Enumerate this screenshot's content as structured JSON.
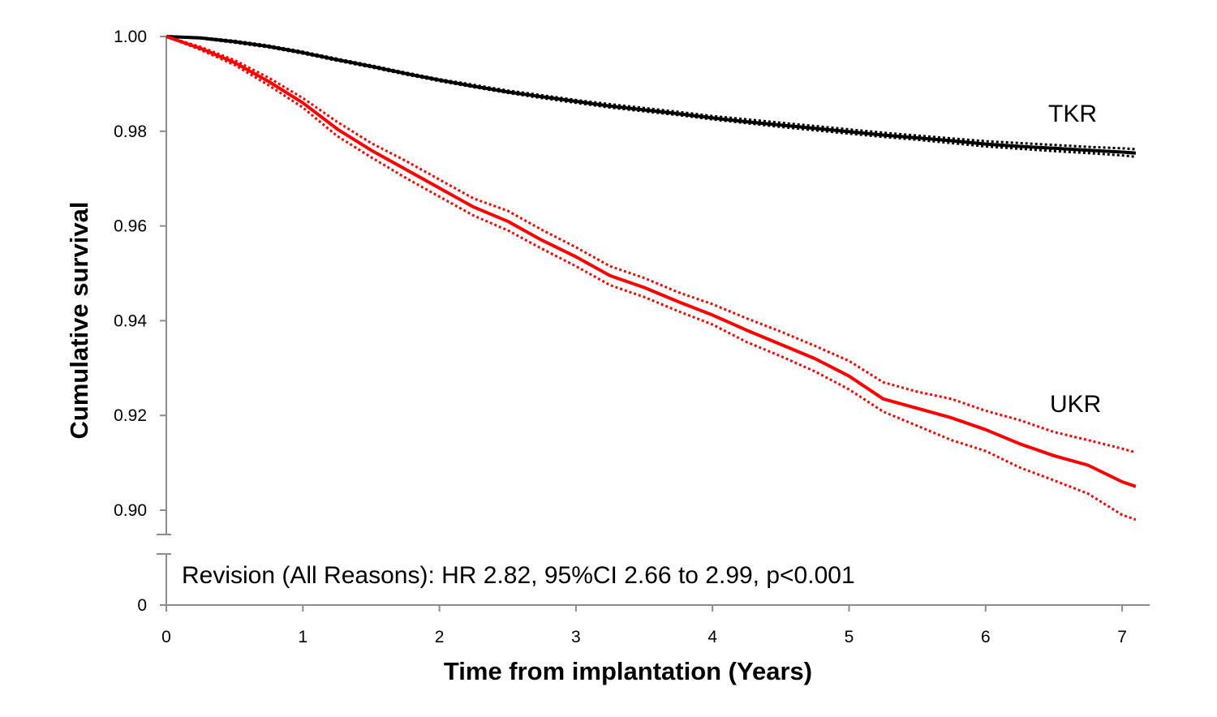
{
  "chart_data": {
    "type": "line",
    "title": "",
    "xlabel": "Time from implantation (Years)",
    "ylabel": "Cumulative survival",
    "x_ticks": [
      0,
      1,
      2,
      3,
      4,
      5,
      6,
      7
    ],
    "x_tick_labels": [
      "0",
      "1",
      "2",
      "3",
      "4",
      "5",
      "6",
      "7"
    ],
    "y_ticks": [
      0.9,
      0.92,
      0.94,
      0.96,
      0.98,
      1.0
    ],
    "y_tick_labels": [
      "0.90",
      "0.92",
      "0.94",
      "0.96",
      "0.98",
      "1.00"
    ],
    "y_break_tick_label": "0",
    "xlim": [
      0,
      7.2
    ],
    "ylim": [
      0.895,
      1.0
    ],
    "y_axis_break": true,
    "grid": false,
    "annotation": "Revision (All Reasons): HR 2.82, 95%CI 2.66 to 2.99, p<0.001",
    "series": [
      {
        "name": "TKR",
        "color": "#000000",
        "x": [
          0,
          0.25,
          0.5,
          0.75,
          1,
          1.25,
          1.5,
          1.75,
          2,
          2.25,
          2.5,
          2.75,
          3,
          3.25,
          3.5,
          3.75,
          4,
          4.25,
          4.5,
          4.75,
          5,
          5.25,
          5.5,
          5.75,
          6,
          6.25,
          6.5,
          6.75,
          7,
          7.1
        ],
        "values": [
          1.0,
          0.9997,
          0.9989,
          0.9979,
          0.9966,
          0.9951,
          0.9937,
          0.9922,
          0.9908,
          0.9895,
          0.9883,
          0.9873,
          0.9863,
          0.9853,
          0.9845,
          0.9837,
          0.9828,
          0.982,
          0.9813,
          0.9806,
          0.9799,
          0.9792,
          0.9786,
          0.978,
          0.9773,
          0.9768,
          0.9764,
          0.976,
          0.9756,
          0.9754
        ],
        "ci_lower": [
          1.0,
          0.9996,
          0.9987,
          0.9977,
          0.9964,
          0.9949,
          0.9935,
          0.992,
          0.9906,
          0.9893,
          0.9881,
          0.987,
          0.986,
          0.985,
          0.9842,
          0.9834,
          0.9825,
          0.9817,
          0.9809,
          0.9802,
          0.9795,
          0.9788,
          0.9782,
          0.9775,
          0.9768,
          0.9763,
          0.9758,
          0.9754,
          0.9749,
          0.9746
        ],
        "ci_upper": [
          1.0,
          0.9998,
          0.9991,
          0.9981,
          0.9968,
          0.9953,
          0.9939,
          0.9924,
          0.991,
          0.9898,
          0.9886,
          0.9876,
          0.9866,
          0.9857,
          0.9849,
          0.9841,
          0.9832,
          0.9825,
          0.9818,
          0.9811,
          0.9804,
          0.9797,
          0.9791,
          0.9785,
          0.9779,
          0.9775,
          0.9771,
          0.9767,
          0.9764,
          0.9762
        ]
      },
      {
        "name": "UKR",
        "color": "#ff0000",
        "x": [
          0,
          0.25,
          0.5,
          0.75,
          1,
          1.25,
          1.5,
          1.75,
          2,
          2.25,
          2.5,
          2.75,
          3,
          3.25,
          3.5,
          3.75,
          4,
          4.25,
          4.5,
          4.75,
          5,
          5.25,
          5.5,
          5.75,
          6,
          6.25,
          6.5,
          6.75,
          7,
          7.1
        ],
        "values": [
          1.0,
          0.9975,
          0.9945,
          0.9905,
          0.986,
          0.9805,
          0.976,
          0.972,
          0.968,
          0.964,
          0.961,
          0.957,
          0.9535,
          0.9495,
          0.947,
          0.944,
          0.9412,
          0.938,
          0.935,
          0.932,
          0.9283,
          0.9235,
          0.9215,
          0.9195,
          0.917,
          0.914,
          0.9115,
          0.9095,
          0.906,
          0.905
        ],
        "ci_lower": [
          1.0,
          0.9972,
          0.994,
          0.9897,
          0.985,
          0.979,
          0.9745,
          0.9702,
          0.9662,
          0.9622,
          0.9591,
          0.9552,
          0.9515,
          0.9475,
          0.945,
          0.942,
          0.9392,
          0.9355,
          0.9325,
          0.9293,
          0.9255,
          0.9208,
          0.9178,
          0.9148,
          0.9125,
          0.909,
          0.9063,
          0.9035,
          0.899,
          0.898
        ],
        "ci_upper": [
          1.0,
          0.9978,
          0.995,
          0.9913,
          0.987,
          0.982,
          0.9775,
          0.9738,
          0.9698,
          0.9658,
          0.9632,
          0.9592,
          0.9555,
          0.9515,
          0.949,
          0.946,
          0.9435,
          0.9405,
          0.9377,
          0.9347,
          0.9315,
          0.927,
          0.925,
          0.9235,
          0.921,
          0.919,
          0.9165,
          0.9148,
          0.913,
          0.9122
        ]
      }
    ]
  }
}
